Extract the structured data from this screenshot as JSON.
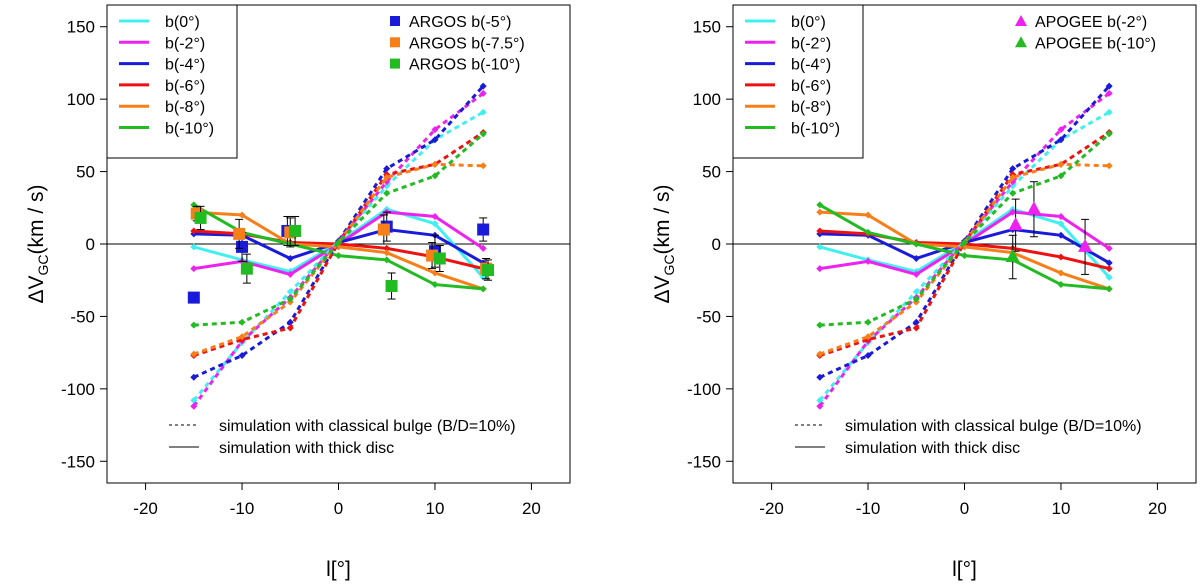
{
  "colors": {
    "b0": "#40f0f0",
    "b2": "#ee22ee",
    "b4": "#1a1adb",
    "b6": "#ee1111",
    "b8": "#f77f1a",
    "b10": "#22bb22",
    "axis": "#000000"
  },
  "chart_data": [
    {
      "type": "line",
      "panel": "left",
      "xlabel": "l[°]",
      "ylabel_main": "ΔV",
      "ylabel_sub": "GC",
      "ylabel_unit": "(km / s)",
      "xlim": [
        -24,
        24
      ],
      "ylim": [
        -165,
        165
      ],
      "xticks": [
        -20,
        -10,
        0,
        10,
        20
      ],
      "yticks": [
        -150,
        -100,
        -50,
        0,
        50,
        100,
        150
      ],
      "zero_line": true,
      "legend_lines": [
        {
          "label": "b(0°)",
          "color": "b0"
        },
        {
          "label": "b(-2°)",
          "color": "b2"
        },
        {
          "label": "b(-4°)",
          "color": "b4"
        },
        {
          "label": "b(-6°)",
          "color": "b6"
        },
        {
          "label": "b(-8°)",
          "color": "b8"
        },
        {
          "label": "b(-10°)",
          "color": "b10"
        }
      ],
      "legend_style": [
        {
          "label": "simulation with classical bulge (B/D=10%)",
          "dash": true
        },
        {
          "label": "simulation with thick disc",
          "dash": false
        }
      ],
      "x": [
        -15,
        -10,
        -5,
        0,
        5,
        10,
        15
      ],
      "series": [
        {
          "name": "b(0°)",
          "color": "b0",
          "style": "solid",
          "values": [
            -2,
            -11,
            -19,
            1,
            24,
            14,
            -23
          ]
        },
        {
          "name": "b(-2°)",
          "color": "b2",
          "style": "solid",
          "values": [
            -17,
            -12,
            -21,
            0,
            22,
            19,
            -3
          ]
        },
        {
          "name": "b(-4°)",
          "color": "b4",
          "style": "solid",
          "values": [
            7,
            6,
            -10,
            1,
            10,
            6,
            -13
          ]
        },
        {
          "name": "b(-6°)",
          "color": "b6",
          "style": "solid",
          "values": [
            9,
            7,
            1,
            0,
            -3,
            -9,
            -17
          ]
        },
        {
          "name": "b(-8°)",
          "color": "b8",
          "style": "solid",
          "values": [
            22,
            20,
            0,
            -2,
            -6,
            -20,
            -31
          ]
        },
        {
          "name": "b(-10°)",
          "color": "b10",
          "style": "solid",
          "values": [
            27,
            8,
            0,
            -8,
            -11,
            -28,
            -31
          ]
        },
        {
          "name": "b(0°) classical",
          "color": "b0",
          "style": "dash",
          "values": [
            -108,
            -68,
            -33,
            2,
            40,
            72,
            91
          ]
        },
        {
          "name": "b(-2°) classical",
          "color": "b2",
          "style": "dash",
          "values": [
            -112,
            -67,
            -37,
            2,
            43,
            79,
            104
          ]
        },
        {
          "name": "b(-4°) classical",
          "color": "b4",
          "style": "dash",
          "values": [
            -92,
            -77,
            -54,
            2,
            52,
            72,
            109
          ]
        },
        {
          "name": "b(-6°) classical",
          "color": "b6",
          "style": "dash",
          "values": [
            -77,
            -66,
            -58,
            1,
            48,
            55,
            77
          ]
        },
        {
          "name": "b(-8°) classical",
          "color": "b8",
          "style": "dash",
          "values": [
            -76,
            -64,
            -40,
            1,
            46,
            55,
            54
          ]
        },
        {
          "name": "b(-10°) classical",
          "color": "b10",
          "style": "dash",
          "values": [
            -56,
            -54,
            -38,
            1,
            35,
            47,
            76
          ]
        }
      ],
      "obs_legend": [
        {
          "label": "ARGOS b(-5°)",
          "color": "b4",
          "marker": "square"
        },
        {
          "label": "ARGOS b(-7.5°)",
          "color": "b8",
          "marker": "square"
        },
        {
          "label": "ARGOS b(-10°)",
          "color": "b10",
          "marker": "square"
        }
      ],
      "observations": [
        {
          "name": "ARGOS b(-5°)",
          "color": "b4",
          "marker": "square",
          "points": [
            {
              "x": -15,
              "y": -37,
              "err": 0
            },
            {
              "x": -10,
              "y": -2,
              "err": 10
            },
            {
              "x": -5.3,
              "y": 9,
              "err": 10
            },
            {
              "x": 5,
              "y": 12,
              "err": 10
            },
            {
              "x": 10,
              "y": -5,
              "err": 11
            },
            {
              "x": 15,
              "y": 10,
              "err": 8
            }
          ]
        },
        {
          "name": "ARGOS b(-7.5°)",
          "color": "b8",
          "marker": "square",
          "points": [
            {
              "x": -14.7,
              "y": 21,
              "err": 5
            },
            {
              "x": -10.3,
              "y": 7,
              "err": 10
            },
            {
              "x": -5,
              "y": 8,
              "err": 10
            },
            {
              "x": 4.7,
              "y": 10,
              "err": 10
            },
            {
              "x": 9.7,
              "y": -8,
              "err": 9
            },
            {
              "x": 15.3,
              "y": -17,
              "err": 7
            }
          ]
        },
        {
          "name": "ARGOS b(-10°)",
          "color": "b10",
          "marker": "square",
          "points": [
            {
              "x": -14.3,
              "y": 18,
              "err": 8
            },
            {
              "x": -9.5,
              "y": -17,
              "err": 10
            },
            {
              "x": -4.5,
              "y": 9,
              "err": 10
            },
            {
              "x": 5.5,
              "y": -29,
              "err": 9
            },
            {
              "x": 10.5,
              "y": -10,
              "err": 9
            },
            {
              "x": 15.5,
              "y": -18,
              "err": 7
            }
          ]
        }
      ]
    },
    {
      "type": "line",
      "panel": "right",
      "xlabel": "l[°]",
      "ylabel_main": "ΔV",
      "ylabel_sub": "GC",
      "ylabel_unit": "(km / s)",
      "xlim": [
        -24,
        24
      ],
      "ylim": [
        -165,
        165
      ],
      "xticks": [
        -20,
        -10,
        0,
        10,
        20
      ],
      "yticks": [
        -150,
        -100,
        -50,
        0,
        50,
        100,
        150
      ],
      "zero_line": true,
      "legend_lines": [
        {
          "label": "b(0°)",
          "color": "b0"
        },
        {
          "label": "b(-2°)",
          "color": "b2"
        },
        {
          "label": "b(-4°)",
          "color": "b4"
        },
        {
          "label": "b(-6°)",
          "color": "b6"
        },
        {
          "label": "b(-8°)",
          "color": "b8"
        },
        {
          "label": "b(-10°)",
          "color": "b10"
        }
      ],
      "legend_style": [
        {
          "label": "simulation with classical bulge (B/D=10%)",
          "dash": true
        },
        {
          "label": "simulation with thick disc",
          "dash": false
        }
      ],
      "x": [
        -15,
        -10,
        -5,
        0,
        5,
        10,
        15
      ],
      "series": [
        {
          "name": "b(0°)",
          "color": "b0",
          "style": "solid",
          "values": [
            -2,
            -11,
            -19,
            1,
            24,
            14,
            -23
          ]
        },
        {
          "name": "b(-2°)",
          "color": "b2",
          "style": "solid",
          "values": [
            -17,
            -12,
            -21,
            0,
            22,
            19,
            -3
          ]
        },
        {
          "name": "b(-4°)",
          "color": "b4",
          "style": "solid",
          "values": [
            7,
            6,
            -10,
            1,
            10,
            6,
            -13
          ]
        },
        {
          "name": "b(-6°)",
          "color": "b6",
          "style": "solid",
          "values": [
            9,
            7,
            1,
            0,
            -3,
            -9,
            -17
          ]
        },
        {
          "name": "b(-8°)",
          "color": "b8",
          "style": "solid",
          "values": [
            22,
            20,
            0,
            -2,
            -6,
            -20,
            -31
          ]
        },
        {
          "name": "b(-10°)",
          "color": "b10",
          "style": "solid",
          "values": [
            27,
            8,
            0,
            -8,
            -11,
            -28,
            -31
          ]
        },
        {
          "name": "b(0°) classical",
          "color": "b0",
          "style": "dash",
          "values": [
            -108,
            -68,
            -33,
            2,
            40,
            72,
            91
          ]
        },
        {
          "name": "b(-2°) classical",
          "color": "b2",
          "style": "dash",
          "values": [
            -112,
            -67,
            -37,
            2,
            43,
            79,
            104
          ]
        },
        {
          "name": "b(-4°) classical",
          "color": "b4",
          "style": "dash",
          "values": [
            -92,
            -77,
            -54,
            2,
            52,
            72,
            109
          ]
        },
        {
          "name": "b(-6°) classical",
          "color": "b6",
          "style": "dash",
          "values": [
            -77,
            -66,
            -58,
            1,
            48,
            55,
            77
          ]
        },
        {
          "name": "b(-8°) classical",
          "color": "b8",
          "style": "dash",
          "values": [
            -76,
            -64,
            -40,
            1,
            46,
            55,
            54
          ]
        },
        {
          "name": "b(-10°) classical",
          "color": "b10",
          "style": "dash",
          "values": [
            -56,
            -54,
            -38,
            1,
            35,
            47,
            76
          ]
        }
      ],
      "obs_legend": [
        {
          "label": "APOGEE b(-2°)",
          "color": "b2",
          "marker": "triangle"
        },
        {
          "label": "APOGEE b(-10°)",
          "color": "b10",
          "marker": "triangle"
        }
      ],
      "observations": [
        {
          "name": "APOGEE b(-2°)",
          "color": "b2",
          "marker": "triangle",
          "points": [
            {
              "x": 5.3,
              "y": 13,
              "err": 18
            },
            {
              "x": 7.2,
              "y": 24,
              "err": 19
            },
            {
              "x": 12.5,
              "y": -2,
              "err": 19
            }
          ]
        },
        {
          "name": "APOGEE b(-10°)",
          "color": "b10",
          "marker": "triangle",
          "points": [
            {
              "x": 5,
              "y": -9,
              "err": 15
            }
          ]
        }
      ]
    }
  ]
}
